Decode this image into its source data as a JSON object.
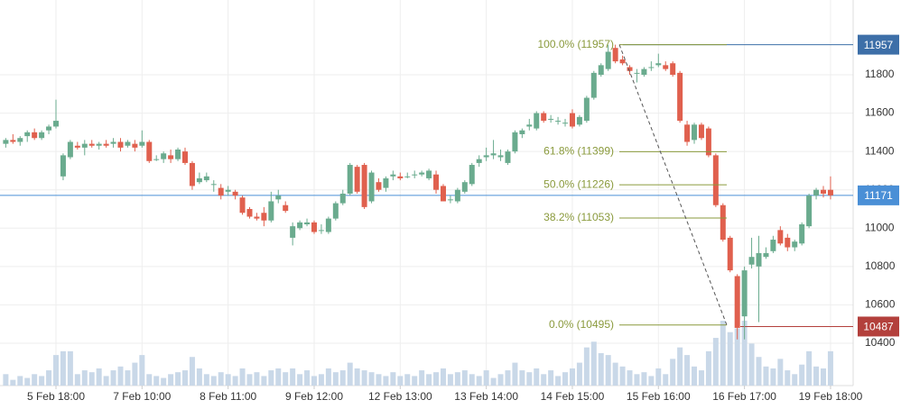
{
  "chart_data": {
    "type": "candlestick",
    "categories": [
      null,
      null,
      null,
      null,
      null,
      null,
      null,
      "5 Feb 18:00",
      null,
      null,
      null,
      null,
      null,
      null,
      null,
      null,
      null,
      null,
      null,
      "7 Feb 10:00",
      null,
      null,
      null,
      null,
      null,
      null,
      null,
      null,
      null,
      null,
      null,
      "8 Feb 11:00",
      null,
      null,
      null,
      null,
      null,
      null,
      null,
      null,
      null,
      null,
      null,
      "9 Feb 12:00",
      null,
      null,
      null,
      null,
      null,
      null,
      null,
      null,
      null,
      null,
      null,
      "12 Feb 13:00",
      null,
      null,
      null,
      null,
      null,
      null,
      null,
      null,
      null,
      null,
      null,
      "13 Feb 14:00",
      null,
      null,
      null,
      null,
      null,
      null,
      null,
      null,
      null,
      null,
      null,
      "14 Feb 15:00",
      null,
      null,
      null,
      null,
      null,
      null,
      null,
      null,
      null,
      null,
      null,
      "15 Feb 16:00",
      null,
      null,
      null,
      null,
      null,
      null,
      null,
      null,
      null,
      null,
      null,
      "16 Feb 17:00",
      null,
      null,
      null,
      null,
      null,
      null,
      null,
      null,
      null,
      null,
      null,
      "19 Feb 18:00"
    ],
    "ohlc": [
      [
        11440,
        11470,
        11420,
        11460
      ],
      [
        11460,
        11490,
        11440,
        11450
      ],
      [
        11450,
        11480,
        11430,
        11470
      ],
      [
        11480,
        11510,
        11450,
        11500
      ],
      [
        11500,
        11520,
        11460,
        11470
      ],
      [
        11470,
        11510,
        11460,
        11500
      ],
      [
        11510,
        11540,
        11490,
        11530
      ],
      [
        11530,
        11670,
        11520,
        11560
      ],
      [
        11270,
        11390,
        11250,
        11380
      ],
      [
        11370,
        11460,
        11360,
        11450
      ],
      [
        11430,
        11450,
        11410,
        11420
      ],
      [
        11420,
        11460,
        11380,
        11440
      ],
      [
        11440,
        11460,
        11420,
        11430
      ],
      [
        11430,
        11450,
        11410,
        11440
      ],
      [
        11440,
        11460,
        11420,
        11430
      ],
      [
        11440,
        11470,
        11420,
        11450
      ],
      [
        11450,
        11470,
        11400,
        11420
      ],
      [
        11430,
        11460,
        11420,
        11450
      ],
      [
        11440,
        11460,
        11400,
        11420
      ],
      [
        11430,
        11510,
        11420,
        11450
      ],
      [
        11450,
        11460,
        11340,
        11350
      ],
      [
        11360,
        11380,
        11350,
        11360
      ],
      [
        11360,
        11400,
        11340,
        11390
      ],
      [
        11380,
        11410,
        11340,
        11360
      ],
      [
        11360,
        11420,
        11350,
        11410
      ],
      [
        11400,
        11420,
        11330,
        11340
      ],
      [
        11340,
        11350,
        11200,
        11220
      ],
      [
        11240,
        11290,
        11230,
        11260
      ],
      [
        11250,
        11290,
        11240,
        11270
      ],
      [
        11230,
        11250,
        11190,
        11230
      ],
      [
        11210,
        11230,
        11150,
        11170
      ],
      [
        11190,
        11220,
        11170,
        11200
      ],
      [
        11190,
        11200,
        11150,
        11170
      ],
      [
        11160,
        11170,
        11070,
        11080
      ],
      [
        11100,
        11110,
        11050,
        11060
      ],
      [
        11060,
        11080,
        11040,
        11050
      ],
      [
        11080,
        11110,
        11010,
        11040
      ],
      [
        11040,
        11190,
        11030,
        11140
      ],
      [
        11150,
        11200,
        11130,
        11170
      ],
      [
        11120,
        11140,
        11080,
        11090
      ],
      [
        10950,
        11030,
        10910,
        11010
      ],
      [
        11000,
        11040,
        10990,
        11030
      ],
      [
        11020,
        11050,
        11010,
        11030
      ],
      [
        11030,
        11040,
        10970,
        10980
      ],
      [
        10990,
        11020,
        10970,
        10990
      ],
      [
        10980,
        11060,
        10970,
        11050
      ],
      [
        11050,
        11140,
        11040,
        11130
      ],
      [
        11130,
        11200,
        11120,
        11180
      ],
      [
        11180,
        11340,
        11170,
        11330
      ],
      [
        11320,
        11330,
        11180,
        11190
      ],
      [
        11330,
        11340,
        11100,
        11110
      ],
      [
        11140,
        11300,
        11130,
        11290
      ],
      [
        11240,
        11260,
        11190,
        11200
      ],
      [
        11210,
        11270,
        11190,
        11260
      ],
      [
        11270,
        11300,
        11250,
        11280
      ],
      [
        11270,
        11290,
        11250,
        11260
      ],
      [
        11270,
        11290,
        11260,
        11270
      ],
      [
        11280,
        11300,
        11260,
        11280
      ],
      [
        11280,
        11300,
        11270,
        11290
      ],
      [
        11260,
        11310,
        11250,
        11300
      ],
      [
        11280,
        11300,
        11180,
        11200
      ],
      [
        11220,
        11230,
        11140,
        11140
      ],
      [
        11150,
        11170,
        11130,
        11150
      ],
      [
        11140,
        11210,
        11130,
        11200
      ],
      [
        11190,
        11250,
        11180,
        11240
      ],
      [
        11230,
        11340,
        11220,
        11330
      ],
      [
        11340,
        11380,
        11320,
        11360
      ],
      [
        11370,
        11420,
        11350,
        11380
      ],
      [
        11380,
        11460,
        11360,
        11390
      ],
      [
        11370,
        11410,
        11350,
        11380
      ],
      [
        11340,
        11410,
        11330,
        11400
      ],
      [
        11400,
        11510,
        11390,
        11500
      ],
      [
        11490,
        11520,
        11470,
        11510
      ],
      [
        11530,
        11570,
        11510,
        11540
      ],
      [
        11520,
        11610,
        11510,
        11600
      ],
      [
        11600,
        11610,
        11550,
        11560
      ],
      [
        11570,
        11590,
        11550,
        11570
      ],
      [
        11560,
        11580,
        11540,
        11560
      ],
      [
        11550,
        11570,
        11530,
        11550
      ],
      [
        11600,
        11620,
        11520,
        11530
      ],
      [
        11540,
        11590,
        11530,
        11580
      ],
      [
        11560,
        11690,
        11550,
        11680
      ],
      [
        11680,
        11820,
        11670,
        11810
      ],
      [
        11800,
        11860,
        11790,
        11850
      ],
      [
        11830,
        11957,
        11820,
        11920
      ],
      [
        11940,
        11957,
        11860,
        11870
      ],
      [
        11880,
        11900,
        11850,
        11860
      ],
      [
        11840,
        11850,
        11800,
        11820
      ],
      [
        11810,
        11830,
        11760,
        11810
      ],
      [
        11800,
        11840,
        11790,
        11830
      ],
      [
        11840,
        11870,
        11820,
        11840
      ],
      [
        11850,
        11910,
        11840,
        11860
      ],
      [
        11850,
        11870,
        11820,
        11830
      ],
      [
        11860,
        11870,
        11790,
        11800
      ],
      [
        11810,
        11820,
        11550,
        11560
      ],
      [
        11540,
        11560,
        11430,
        11450
      ],
      [
        11460,
        11550,
        11440,
        11540
      ],
      [
        11540,
        11550,
        11460,
        11470
      ],
      [
        11520,
        11530,
        11370,
        11380
      ],
      [
        11380,
        11390,
        11110,
        11120
      ],
      [
        11120,
        11130,
        10930,
        10940
      ],
      [
        10950,
        10960,
        10770,
        10780
      ],
      [
        10750,
        10760,
        10420,
        10480
      ],
      [
        10540,
        10800,
        10420,
        10780
      ],
      [
        10810,
        10950,
        10790,
        10850
      ],
      [
        10800,
        10960,
        10510,
        10870
      ],
      [
        10850,
        10900,
        10840,
        10870
      ],
      [
        10880,
        10960,
        10870,
        10940
      ],
      [
        10990,
        11010,
        10910,
        10920
      ],
      [
        10950,
        10970,
        10880,
        10900
      ],
      [
        10900,
        10940,
        10880,
        10930
      ],
      [
        10920,
        11030,
        10910,
        11020
      ],
      [
        11010,
        11180,
        11000,
        11170
      ],
      [
        11170,
        11210,
        11150,
        11200
      ],
      [
        11200,
        11220,
        11160,
        11180
      ],
      [
        11200,
        11270,
        11150,
        11171
      ]
    ],
    "volume": [
      6,
      3,
      5,
      4,
      6,
      5,
      8,
      16,
      18,
      18,
      6,
      8,
      7,
      9,
      5,
      8,
      10,
      8,
      12,
      16,
      6,
      5,
      4,
      6,
      7,
      8,
      15,
      9,
      6,
      5,
      7,
      6,
      5,
      9,
      6,
      7,
      5,
      8,
      9,
      7,
      9,
      6,
      8,
      5,
      6,
      9,
      7,
      8,
      12,
      9,
      8,
      7,
      6,
      5,
      7,
      5,
      6,
      5,
      8,
      6,
      7,
      9,
      6,
      7,
      8,
      6,
      5,
      8,
      4,
      6,
      8,
      12,
      8,
      7,
      9,
      6,
      8,
      5,
      7,
      9,
      12,
      20,
      23,
      17,
      16,
      12,
      10,
      8,
      6,
      7,
      5,
      9,
      6,
      14,
      20,
      16,
      10,
      8,
      18,
      25,
      34,
      28,
      30,
      34,
      22,
      15,
      10,
      9,
      14,
      8,
      6,
      11,
      18,
      10,
      9,
      18
    ],
    "up_color": "#6aab8e",
    "down_color": "#e0604e",
    "volume_color": "#c9d8e8",
    "ylim": [
      10179,
      12190
    ],
    "yticks": [
      10400,
      10600,
      10800,
      11000,
      11200,
      11400,
      11600,
      11800
    ],
    "grid": true,
    "fibonacci": {
      "color": "#8a9a3c",
      "levels": [
        {
          "value": 11957,
          "label": "100.0% (11957)"
        },
        {
          "value": 11399,
          "label": "61.8% (11399)"
        },
        {
          "value": 11226,
          "label": "50.0% (11226)"
        },
        {
          "value": 11053,
          "label": "38.2% (11053)"
        },
        {
          "value": 10495,
          "label": "0.0% (10495)"
        }
      ]
    },
    "price_lines": [
      {
        "value": 11957,
        "color": "#3d6fa8"
      },
      {
        "value": 11171,
        "color": "#4a8fd6"
      },
      {
        "value": 10487,
        "color": "#b3403c"
      }
    ]
  }
}
